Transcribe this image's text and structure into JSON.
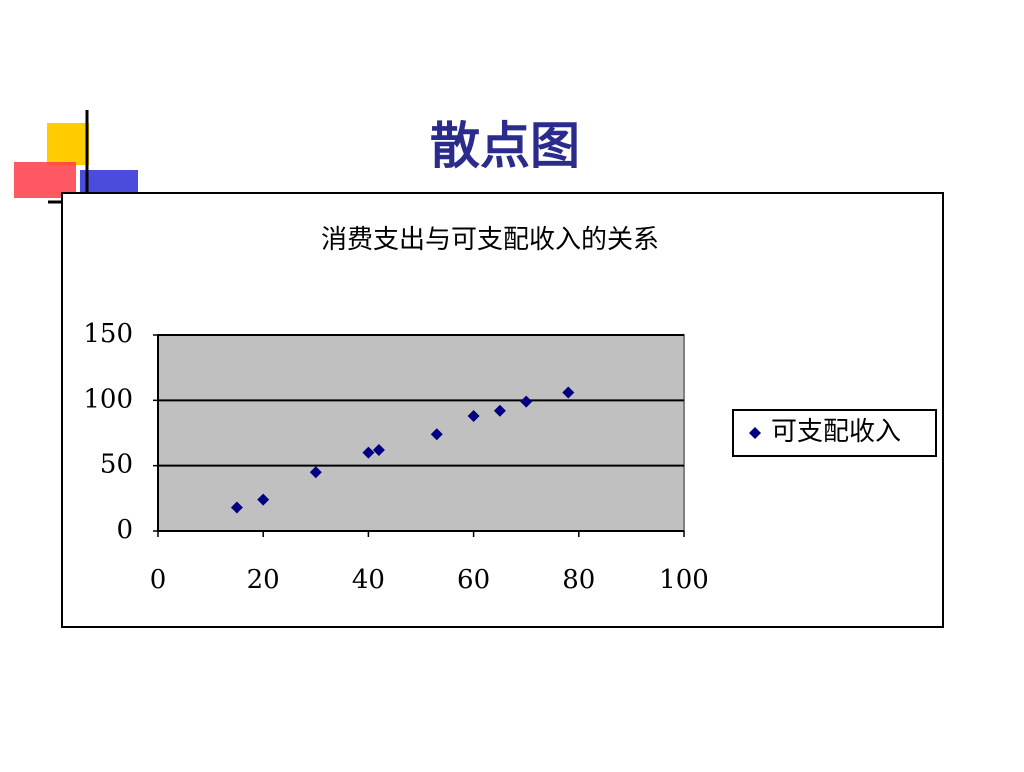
{
  "slide_title": "散点图",
  "chart_data": {
    "type": "scatter",
    "title": "消费支出与可支配收入的关系",
    "x": [
      15,
      20,
      30,
      40,
      42,
      53,
      60,
      65,
      70,
      78
    ],
    "series": [
      {
        "name": "可支配收入",
        "color": "#000080",
        "values": [
          18,
          24,
          45,
          60,
          62,
          74,
          88,
          92,
          99,
          106
        ]
      }
    ],
    "xlim": [
      0,
      100
    ],
    "xticks": [
      0,
      20,
      40,
      60,
      80,
      100
    ],
    "ylim": [
      0,
      150
    ],
    "yticks": [
      0,
      50,
      100,
      150
    ],
    "grid": true,
    "legend": "right",
    "plot_background": "#c0c0c0"
  }
}
